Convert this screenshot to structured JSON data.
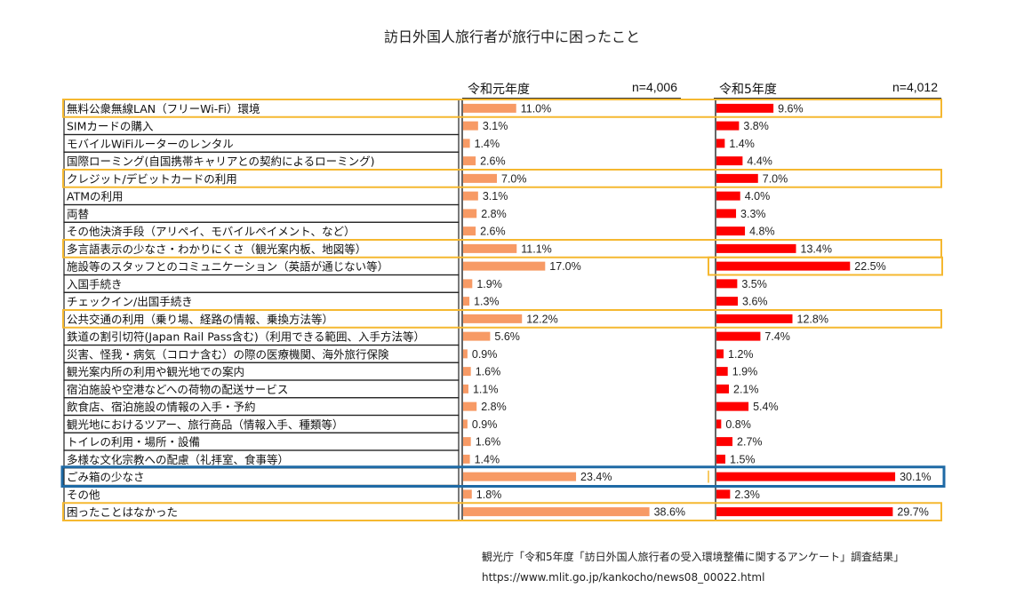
{
  "chart_data": {
    "type": "bar",
    "title": "訪日外国人旅行者が旅行中に困ったこと",
    "xlabel": "",
    "ylabel": "",
    "unit": "%",
    "categories": [
      "無料公衆無線LAN（フリーWi-Fi）環境",
      "SIMカードの購入",
      "モバイルWiFiルーターのレンタル",
      "国際ローミング(自国携帯キャリアとの契約によるローミング)",
      "クレジット/デビットカードの利用",
      "ATMの利用",
      "両替",
      "その他決済手段（アリペイ、モバイルペイメント、など）",
      "多言語表示の少なさ・わかりにくさ（観光案内板、地図等）",
      "施設等のスタッフとのコミュニケーション（英語が通じない等）",
      "入国手続き",
      "チェックイン/出国手続き",
      "公共交通の利用（乗り場、経路の情報、乗換方法等）",
      "鉄道の割引切符(Japan Rail Pass含む)（利用できる範囲、入手方法等）",
      "災害、怪我・病気（コロナ含む）の際の医療機関、海外旅行保険",
      "観光案内所の利用や観光地での案内",
      "宿泊施設や空港などへの荷物の配送サービス",
      "飲食店、宿泊施設の情報の入手・予約",
      "観光地におけるツアー、旅行商品（情報入手、種類等）",
      "トイレの利用・場所・設備",
      "多様な文化宗教への配慮（礼拝室、食事等）",
      "ごみ箱の少なさ",
      "その他",
      "困ったことはなかった"
    ],
    "series": [
      {
        "name": "令和元年度",
        "n_label": "n=4,006",
        "color": "#f79a65",
        "values": [
          11.0,
          3.1,
          1.4,
          2.6,
          7.0,
          3.1,
          2.8,
          2.6,
          11.1,
          17.0,
          1.9,
          1.3,
          12.2,
          5.6,
          0.9,
          1.6,
          1.1,
          2.8,
          0.9,
          1.6,
          1.4,
          23.4,
          1.8,
          38.6
        ],
        "labels": [
          "11.0%",
          "3.1%",
          "1.4%",
          "2.6%",
          "7.0%",
          "3.1%",
          "2.8%",
          "2.6%",
          "11.1%",
          "17.0%",
          "1.9%",
          "1.3%",
          "12.2%",
          "5.6%",
          "0.9%",
          "1.6%",
          "1.1%",
          "2.8%",
          "0.9%",
          "1.6%",
          "1.4%",
          "23.4%",
          "1.8%",
          "38.6%"
        ]
      },
      {
        "name": "令和5年度",
        "n_label": "n=4,012",
        "color": "#ff0000",
        "values": [
          9.6,
          3.8,
          1.4,
          4.4,
          7.0,
          4.0,
          3.3,
          4.8,
          13.4,
          22.5,
          3.5,
          3.6,
          12.8,
          7.4,
          1.2,
          1.9,
          2.1,
          5.4,
          0.8,
          2.7,
          1.5,
          30.1,
          2.3,
          29.7
        ],
        "labels": [
          "9.6%",
          "3.8%",
          "1.4%",
          "4.4%",
          "7.0%",
          "4.0%",
          "3.3%",
          "4.8%",
          "13.4%",
          "22.5%",
          "3.5%",
          "3.6%",
          "12.8%",
          "7.4%",
          "1.2%",
          "1.9%",
          "2.1%",
          "5.4%",
          "0.8%",
          "2.7%",
          "1.5%",
          "30.1%",
          "2.3%",
          "29.7%"
        ]
      }
    ],
    "highlights": {
      "yellow_rows": [
        0,
        4,
        8,
        12,
        23
      ],
      "yellow_right_only_rows": [
        9
      ],
      "blue_rows": [
        21
      ],
      "yellow_color": "#f5b830",
      "blue_color": "#1f6aa5"
    },
    "legend": "none",
    "grid": false
  },
  "source": {
    "citation": "観光庁「令和5年度「訪日外国人旅行者の受入環境整備に関するアンケート」調査結果」",
    "url": "https://www.mlit.go.jp/kankocho/news08_00022.html"
  }
}
